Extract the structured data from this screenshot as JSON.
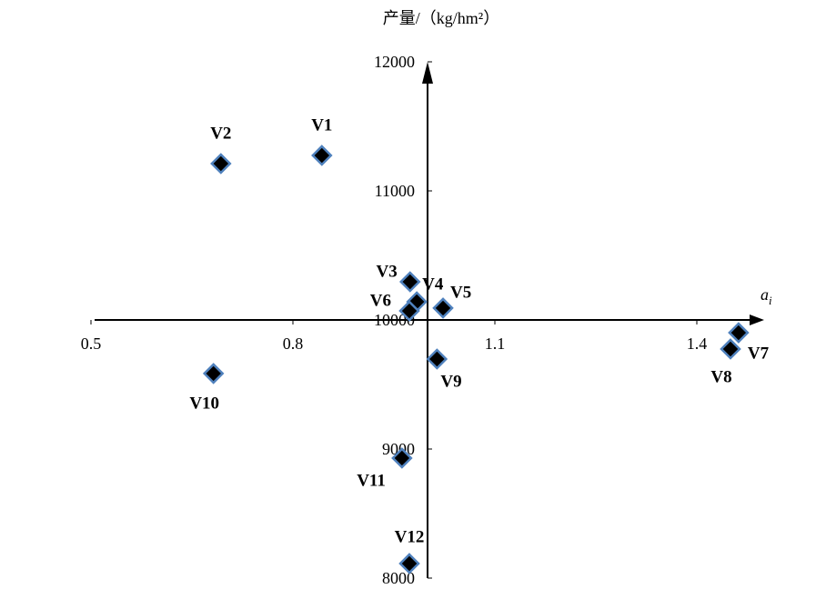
{
  "chart_data": {
    "type": "scatter",
    "y_label": "产量/（kg/hm²）",
    "x_label": "a",
    "x_label_subscript": "i",
    "labels": [
      "V1",
      "V2",
      "V3",
      "V4",
      "V5",
      "V6",
      "V7",
      "V8",
      "V9",
      "V10",
      "V11",
      "V12"
    ],
    "x": [
      0.843,
      0.693,
      0.974,
      0.984,
      1.023,
      0.973,
      1.462,
      1.45,
      1.014,
      0.682,
      0.962,
      0.973
    ],
    "values": [
      11275,
      11211,
      10296,
      10141,
      10092,
      10070,
      9901,
      9775,
      9697,
      9585,
      8930,
      8113
    ],
    "color": "#000000",
    "edge_color": "#4f81bd",
    "xlim": [
      0.5,
      1.5
    ],
    "xticks": [
      0.5,
      0.8,
      1.1,
      1.4
    ],
    "ylim": [
      8000,
      12000
    ],
    "yticks": [
      8000,
      9000,
      10000,
      11000,
      12000
    ],
    "x_axis_crosses": 10000,
    "y_axis_crosses": 1.0
  }
}
